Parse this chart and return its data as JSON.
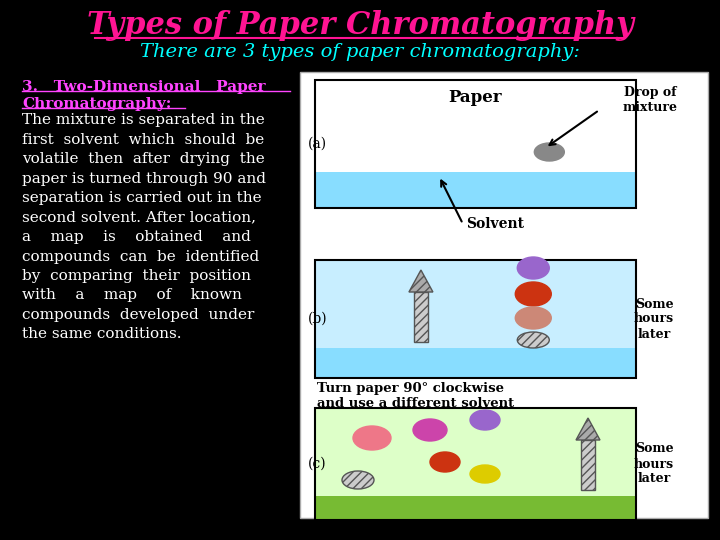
{
  "bg_color": "#000000",
  "title": "Types of Paper Chromatography",
  "title_color": "#ff1493",
  "subtitle": "There are 3 types of paper chromatography:",
  "subtitle_color": "#00ffff",
  "heading_line1": "3.   Two-Dimensional   Paper",
  "heading_line2": "Chromatography:",
  "heading_color": "#ff44ff",
  "body_color": "#ffffff",
  "paper_label": "Paper",
  "solvent_label": "Solvent",
  "drop_label": "Drop of\nmixture",
  "mid_label": "Turn paper 90° clockwise\nand use a different solvent",
  "some_hours_label": "Some\nhours\nlater",
  "label_a": "(a)",
  "label_b": "(b)",
  "label_c": "(c)"
}
